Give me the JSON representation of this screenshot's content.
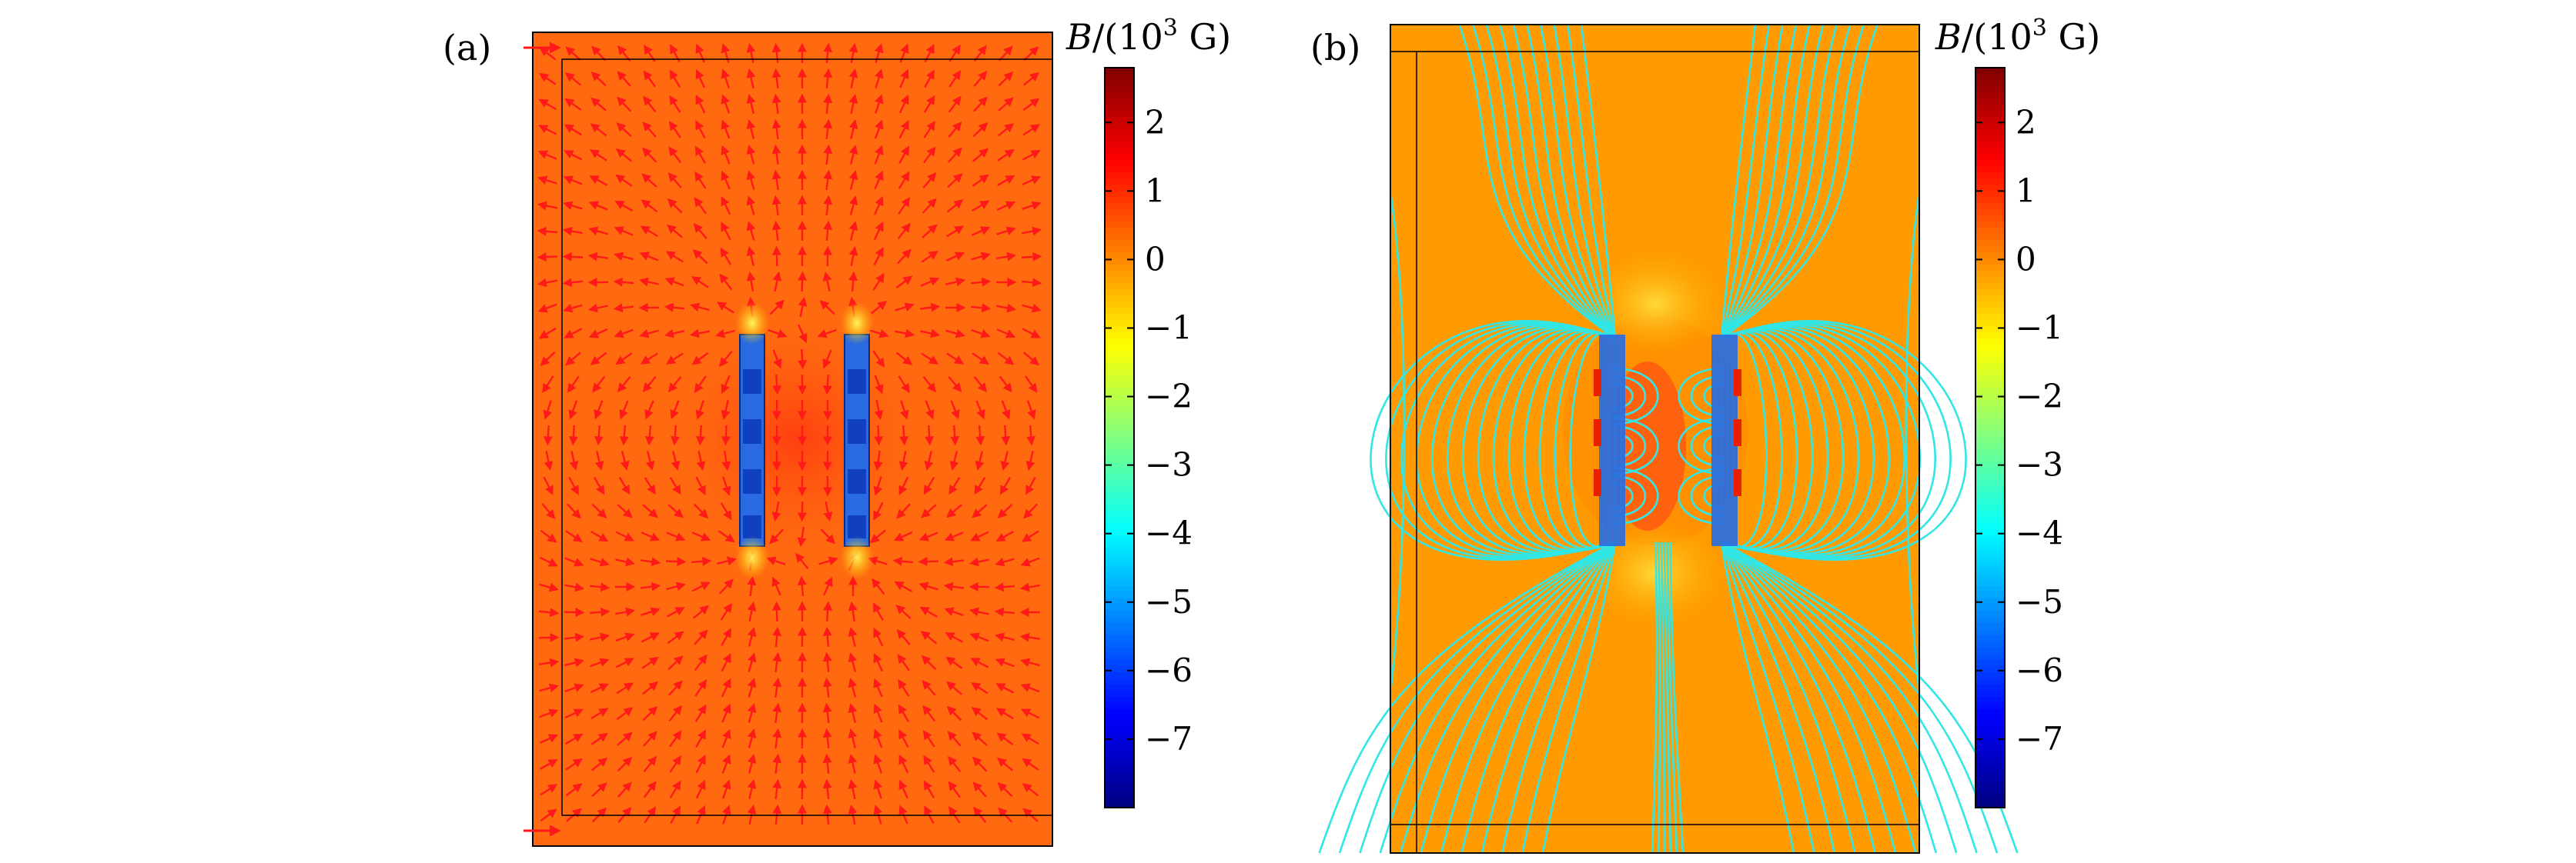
{
  "chart_data": [
    {
      "type": "heatmap",
      "panel": "(a)",
      "overlay": "field arrows",
      "colorbar": {
        "title_var": "B",
        "title_unit": "/(10",
        "title_exp": "3",
        "title_end": " G)",
        "min": -8.0,
        "max": 2.8,
        "ticks": [
          "2",
          "1",
          "0",
          "−1",
          "−2",
          "−3",
          "−4",
          "−5",
          "−6",
          "−7"
        ],
        "tick_values": [
          2,
          1,
          0,
          -1,
          -2,
          -3,
          -4,
          -5,
          -6,
          -7
        ],
        "colormap": "jet"
      },
      "field_background_value": 0.5,
      "magnet_value": -5.5,
      "colors": {
        "arrow": "#ff1a1a",
        "background": "#ff6a10",
        "magnet": "#2a6ae0"
      }
    },
    {
      "type": "heatmap",
      "panel": "(b)",
      "overlay": "field lines",
      "colorbar": {
        "title_var": "B",
        "title_unit": "/(10",
        "title_exp": "3",
        "title_end": " G)",
        "min": -8.0,
        "max": 2.8,
        "ticks": [
          "2",
          "1",
          "0",
          "−1",
          "−2",
          "−3",
          "−4",
          "−5",
          "−6",
          "−7"
        ],
        "tick_values": [
          2,
          1,
          0,
          -1,
          -2,
          -3,
          -4,
          -5,
          -6,
          -7
        ],
        "colormap": "jet"
      },
      "field_background_value": 0.0,
      "magnet_value": -5.5,
      "colors": {
        "line": "#33e6e6",
        "background": "#ff9a00",
        "magnet": "#2a6ae0"
      }
    }
  ]
}
